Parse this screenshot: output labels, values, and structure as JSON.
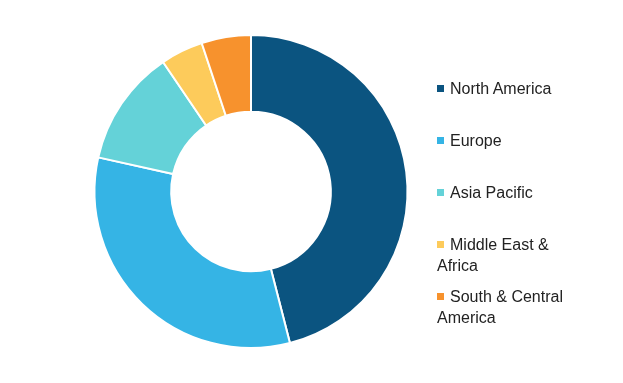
{
  "chart_data": {
    "type": "doughnut",
    "categories": [
      "North America",
      "Europe",
      "Asia Pacific",
      "Middle East & Africa",
      "South & Central America"
    ],
    "values": [
      46,
      32.5,
      12,
      4.4,
      5.1
    ],
    "colors": [
      "#0b5480",
      "#35b4e5",
      "#64d2d8",
      "#fdcb5b",
      "#f7922d"
    ],
    "legend": "right"
  }
}
